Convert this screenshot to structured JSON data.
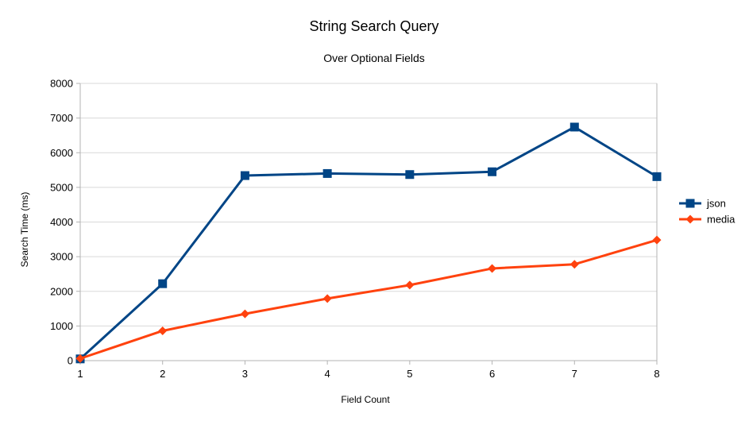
{
  "chart_data": {
    "type": "line",
    "title": "String Search Query",
    "subtitle": "Over Optional Fields",
    "xlabel": "Field Count",
    "ylabel": "Search Time (ms)",
    "x": [
      1,
      2,
      3,
      4,
      5,
      6,
      7,
      8
    ],
    "x_tick_labels": [
      "1",
      "2",
      "3",
      "4",
      "5",
      "6",
      "7",
      "8"
    ],
    "ylim": [
      0,
      8000
    ],
    "y_ticks": [
      0,
      1000,
      2000,
      3000,
      4000,
      5000,
      6000,
      7000,
      8000
    ],
    "y_tick_labels": [
      "0",
      "1000",
      "2000",
      "3000",
      "4000",
      "5000",
      "6000",
      "7000",
      "8000"
    ],
    "grid": true,
    "legend_position": "right",
    "series": [
      {
        "name": "json",
        "color": "#004586",
        "marker": "square",
        "values": [
          50,
          2220,
          5340,
          5400,
          5370,
          5450,
          6740,
          5310
        ]
      },
      {
        "name": "media",
        "color": "#ff420e",
        "marker": "diamond",
        "values": [
          60,
          860,
          1350,
          1790,
          2180,
          2660,
          2780,
          3480
        ]
      }
    ]
  }
}
